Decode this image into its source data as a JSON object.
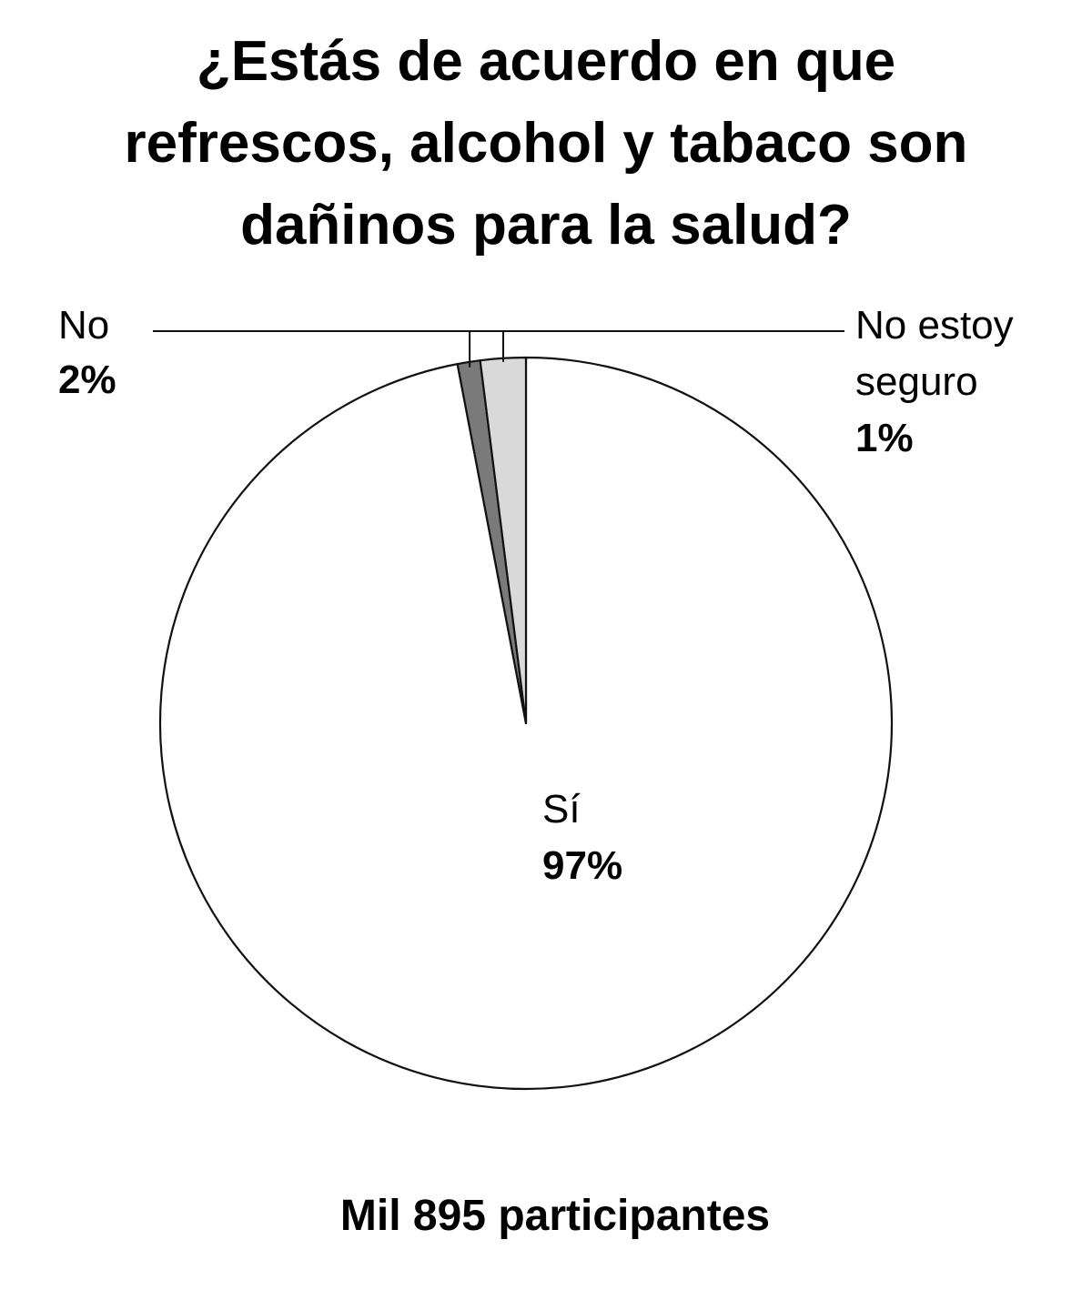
{
  "chart_data": {
    "type": "pie",
    "title_lines": [
      "¿Estás de acuerdo en que",
      "refrescos, alcohol y tabaco son",
      "dañinos para la salud?"
    ],
    "slices": [
      {
        "label": "Sí",
        "label_lines": [
          "Sí"
        ],
        "value": 97,
        "value_text": "97%",
        "color": "#ffffff"
      },
      {
        "label": "No estoy seguro",
        "label_lines": [
          "No estoy",
          "seguro"
        ],
        "value": 1,
        "value_text": "1%",
        "color": "#7a7a7a"
      },
      {
        "label": "No",
        "label_lines": [
          "No"
        ],
        "value": 2,
        "value_text": "2%",
        "color": "#d9d9d9"
      }
    ],
    "footer": "Mil 895 participantes"
  }
}
